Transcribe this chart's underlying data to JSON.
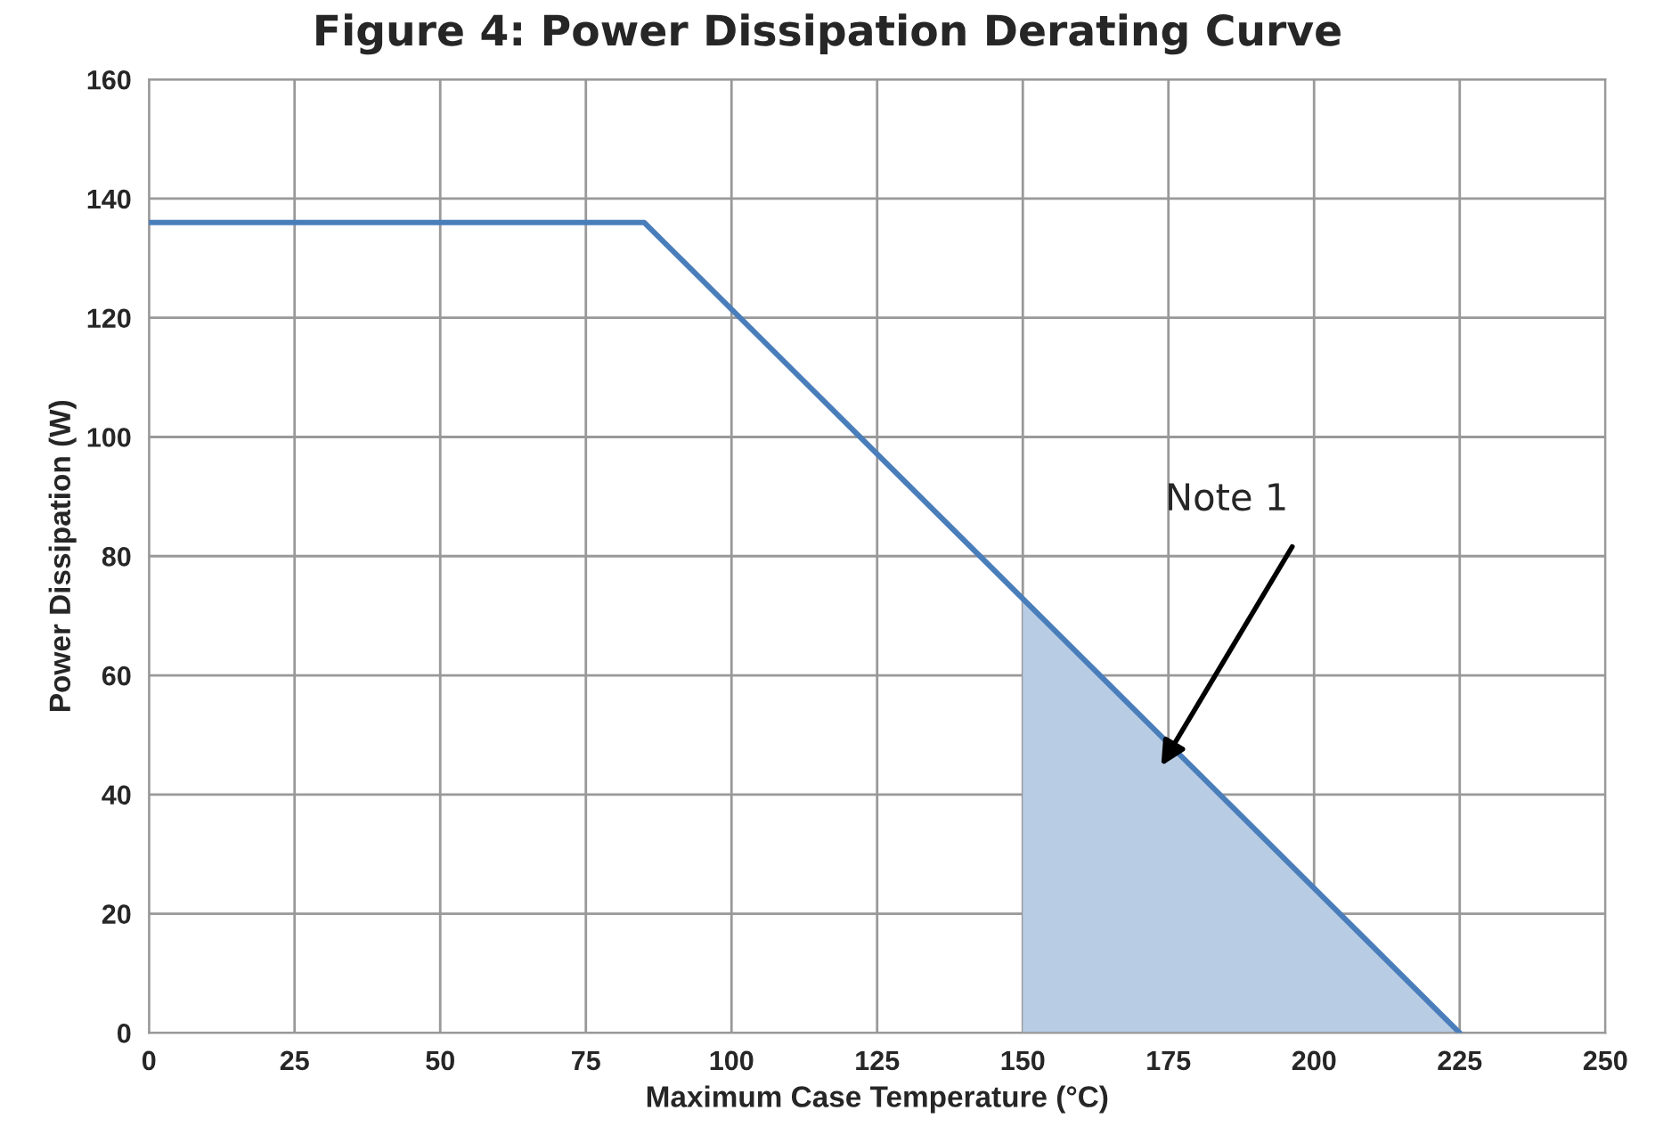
{
  "chart_data": {
    "type": "line",
    "title": "Figure 4: Power Dissipation Derating Curve",
    "xlabel": "Maximum Case Temperature (°C)",
    "ylabel": "Power Dissipation (W)",
    "series": [
      {
        "type": "area",
        "color": "#b8cce4",
        "x": [
          150,
          225
        ],
        "values": [
          73,
          0
        ]
      },
      {
        "color": "#4a7ebb",
        "x": [
          0,
          85,
          225
        ],
        "values": [
          136,
          136,
          0
        ]
      }
    ],
    "xlim": [
      0,
      250
    ],
    "xticks": [
      0,
      25,
      50,
      75,
      100,
      125,
      150,
      175,
      200,
      225,
      250
    ],
    "ylim": [
      0,
      160
    ],
    "yticks": [
      0,
      20,
      40,
      60,
      80,
      100,
      120,
      140,
      160
    ],
    "grid": true,
    "legend": false,
    "marker": "none",
    "line_style": "solid",
    "annotations": [
      "Note 1"
    ]
  }
}
